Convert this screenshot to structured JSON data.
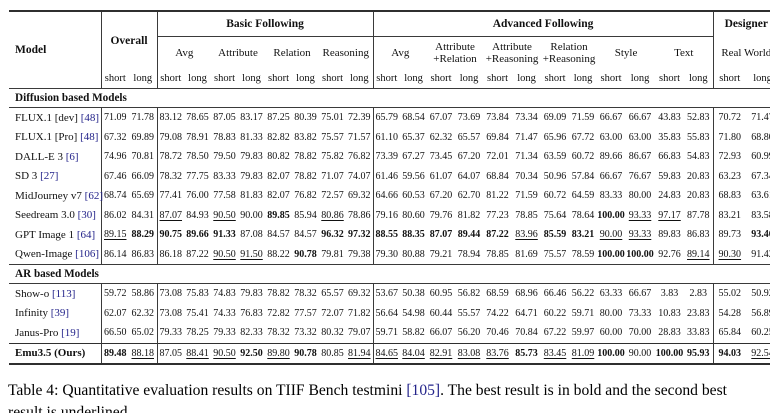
{
  "colors": {
    "citation": "#23238a",
    "rule": "#2f2f2f"
  },
  "table": {
    "header": {
      "model": "Model",
      "overall": "Overall",
      "basic": "Basic Following",
      "advanced": "Advanced Following",
      "designer": "Designer",
      "basic_subs": [
        "Avg",
        "Attribute",
        "Relation",
        "Reasoning"
      ],
      "advanced_subs": [
        "Avg",
        "Attribute +Relation",
        "Attribute +Reasoning",
        "Relation +Reasoning",
        "Style",
        "Text"
      ],
      "designer_sub": "Real World",
      "short": "short",
      "long": "long"
    },
    "legend": {
      "bold": "best",
      "underline": "second best"
    },
    "sections": [
      {
        "title": "Diffusion based Models",
        "rows": [
          {
            "model": "FLUX.1 [dev]",
            "cite": "[48]",
            "values": [
              "71.09",
              "71.78",
              "83.12",
              "78.65",
              "87.05",
              "83.17",
              "87.25",
              "80.39",
              "75.01",
              "72.39",
              "65.79",
              "68.54",
              "67.07",
              "73.69",
              "73.84",
              "73.34",
              "69.09",
              "71.59",
              "66.67",
              "66.67",
              "43.83",
              "52.83",
              "70.72",
              "71.47"
            ]
          },
          {
            "model": "FLUX.1 [Pro]",
            "cite": "[48]",
            "values": [
              "67.32",
              "69.89",
              "79.08",
              "78.91",
              "78.83",
              "81.33",
              "82.82",
              "83.82",
              "75.57",
              "71.57",
              "61.10",
              "65.37",
              "62.32",
              "65.57",
              "69.84",
              "71.47",
              "65.96",
              "67.72",
              "63.00",
              "63.00",
              "35.83",
              "55.83",
              "71.80",
              "68.80"
            ]
          },
          {
            "model": "DALL-E 3",
            "cite": "[6]",
            "values": [
              "74.96",
              "70.81",
              "78.72",
              "78.50",
              "79.50",
              "79.83",
              "80.82",
              "78.82",
              "75.82",
              "76.82",
              "73.39",
              "67.27",
              "73.45",
              "67.20",
              "72.01",
              "71.34",
              "63.59",
              "60.72",
              "89.66",
              "86.67",
              "66.83",
              "54.83",
              "72.93",
              "60.99"
            ]
          },
          {
            "model": "SD 3",
            "cite": "[27]",
            "values": [
              "67.46",
              "66.09",
              "78.32",
              "77.75",
              "83.33",
              "79.83",
              "82.07",
              "78.82",
              "71.07",
              "74.07",
              "61.46",
              "59.56",
              "61.07",
              "64.07",
              "68.84",
              "70.34",
              "50.96",
              "57.84",
              "66.67",
              "76.67",
              "59.83",
              "20.83",
              "63.23",
              "67.34"
            ]
          },
          {
            "model": "MidJourney v7",
            "cite": "[62]",
            "values": [
              "68.74",
              "65.69",
              "77.41",
              "76.00",
              "77.58",
              "81.83",
              "82.07",
              "76.82",
              "72.57",
              "69.32",
              "64.66",
              "60.53",
              "67.20",
              "62.70",
              "81.22",
              "71.59",
              "60.72",
              "64.59",
              "83.33",
              "80.00",
              "24.83",
              "20.83",
              "68.83",
              "63.61"
            ]
          },
          {
            "model": "Seedream 3.0",
            "cite": "[30]",
            "values": [
              "86.02",
              "84.31",
              "u:87.07",
              "84.93",
              "u:90.50",
              "90.00",
              "b:89.85",
              "85.94",
              "u:80.86",
              "78.86",
              "79.16",
              "80.60",
              "79.76",
              "81.82",
              "77.23",
              "78.85",
              "75.64",
              "78.64",
              "b:100.00",
              "u:93.33",
              "u:97.17",
              "87.78",
              "83.21",
              "83.58"
            ]
          },
          {
            "model": "GPT Image 1",
            "cite": "[64]",
            "values": [
              "u:89.15",
              "b:88.29",
              "b:90.75",
              "b:89.66",
              "b:91.33",
              "87.08",
              "84.57",
              "84.57",
              "b:96.32",
              "b:97.32",
              "b:88.55",
              "b:88.35",
              "b:87.07",
              "b:89.44",
              "b:87.22",
              "u:83.96",
              "b:85.59",
              "b:83.21",
              "u:90.00",
              "u:93.33",
              "89.83",
              "86.83",
              "89.73",
              "b:93.46"
            ]
          },
          {
            "model": "Qwen-Image",
            "cite": "[106]",
            "values": [
              "86.14",
              "86.83",
              "86.18",
              "87.22",
              "u:90.50",
              "u:91.50",
              "88.22",
              "b:90.78",
              "79.81",
              "79.38",
              "79.30",
              "80.88",
              "79.21",
              "78.94",
              "78.85",
              "81.69",
              "75.57",
              "78.59",
              "b:100.00",
              "b:100.00",
              "92.76",
              "u:89.14",
              "u:90.30",
              "91.42"
            ]
          }
        ]
      },
      {
        "title": "AR based Models",
        "rows": [
          {
            "model": "Show-o",
            "cite": "[113]",
            "values": [
              "59.72",
              "58.86",
              "73.08",
              "75.83",
              "74.83",
              "79.83",
              "78.82",
              "78.32",
              "65.57",
              "69.32",
              "53.67",
              "50.38",
              "60.95",
              "56.82",
              "68.59",
              "68.96",
              "66.46",
              "56.22",
              "63.33",
              "66.67",
              "3.83",
              "2.83",
              "55.02",
              "50.92"
            ]
          },
          {
            "model": "Infinity",
            "cite": "[39]",
            "values": [
              "62.07",
              "62.32",
              "73.08",
              "75.41",
              "74.33",
              "76.83",
              "72.82",
              "77.57",
              "72.07",
              "71.82",
              "56.64",
              "54.98",
              "60.44",
              "55.57",
              "74.22",
              "64.71",
              "60.22",
              "59.71",
              "80.00",
              "73.33",
              "10.83",
              "23.83",
              "54.28",
              "56.89"
            ]
          },
          {
            "model": "Janus-Pro",
            "cite": "[19]",
            "values": [
              "66.50",
              "65.02",
              "79.33",
              "78.25",
              "79.33",
              "82.33",
              "78.32",
              "73.32",
              "80.32",
              "79.07",
              "59.71",
              "58.82",
              "66.07",
              "56.20",
              "70.46",
              "70.84",
              "67.22",
              "59.97",
              "60.00",
              "70.00",
              "28.83",
              "33.83",
              "65.84",
              "60.25"
            ]
          }
        ]
      }
    ],
    "final_row": {
      "model": "Emu3.5 (Ours)",
      "cite": "",
      "values": [
        "b:89.48",
        "u:88.18",
        "87.05",
        "u:88.41",
        "u:90.50",
        "b:92.50",
        "u:89.80",
        "b:90.78",
        "80.85",
        "u:81.94",
        "u:84.65",
        "u:84.04",
        "u:82.91",
        "u:83.08",
        "u:83.76",
        "b:85.73",
        "u:83.45",
        "u:81.09",
        "b:100.00",
        "90.00",
        "b:100.00",
        "b:95.93",
        "b:94.03",
        "u:92.54"
      ]
    }
  },
  "caption": {
    "prefix": "Table 4: Quantitative evaluation results on TIIF Bench testmini ",
    "cite": "[105]",
    "suffix": ". The best result is in bold and the second best result is underlined."
  }
}
